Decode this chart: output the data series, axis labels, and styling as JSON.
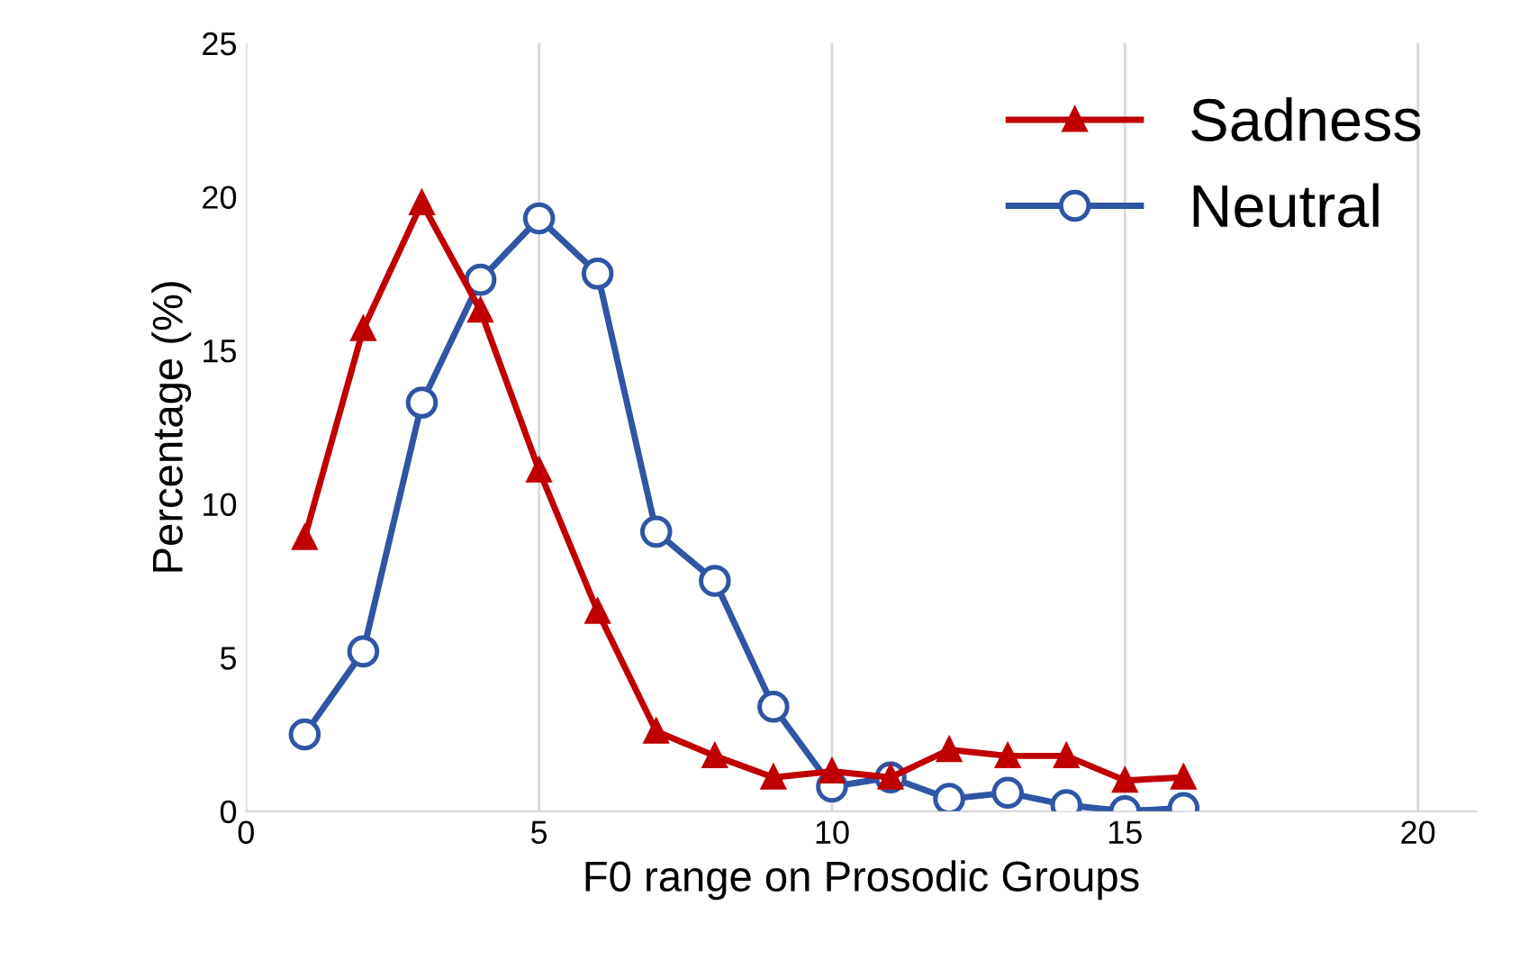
{
  "chart_data": {
    "type": "line",
    "xlabel": "F0 range on Prosodic Groups",
    "ylabel": "Percentage (%)",
    "x": [
      1,
      2,
      3,
      4,
      5,
      6,
      7,
      8,
      9,
      10,
      11,
      12,
      13,
      14,
      15,
      16
    ],
    "series": [
      {
        "name": "Sadness",
        "color": "#c00000",
        "marker": "triangle",
        "values": [
          8.9,
          15.7,
          19.8,
          16.3,
          11.1,
          6.5,
          2.6,
          1.8,
          1.1,
          1.3,
          1.1,
          2.0,
          1.8,
          1.8,
          1.0,
          1.1
        ]
      },
      {
        "name": "Neutral",
        "color": "#2f55a4",
        "marker": "circle",
        "values": [
          2.5,
          5.2,
          13.3,
          17.3,
          19.3,
          17.5,
          9.1,
          7.5,
          3.4,
          0.8,
          1.1,
          0.4,
          0.6,
          0.2,
          0.0,
          0.1
        ]
      }
    ],
    "xlim": [
      0,
      21
    ],
    "xticks": [
      0,
      5,
      10,
      15,
      20
    ],
    "ylim": [
      0,
      25
    ],
    "yticks": [
      0,
      5,
      10,
      15,
      20,
      25
    ],
    "grid": "x",
    "legend": "top right",
    "line_style": "solid"
  }
}
